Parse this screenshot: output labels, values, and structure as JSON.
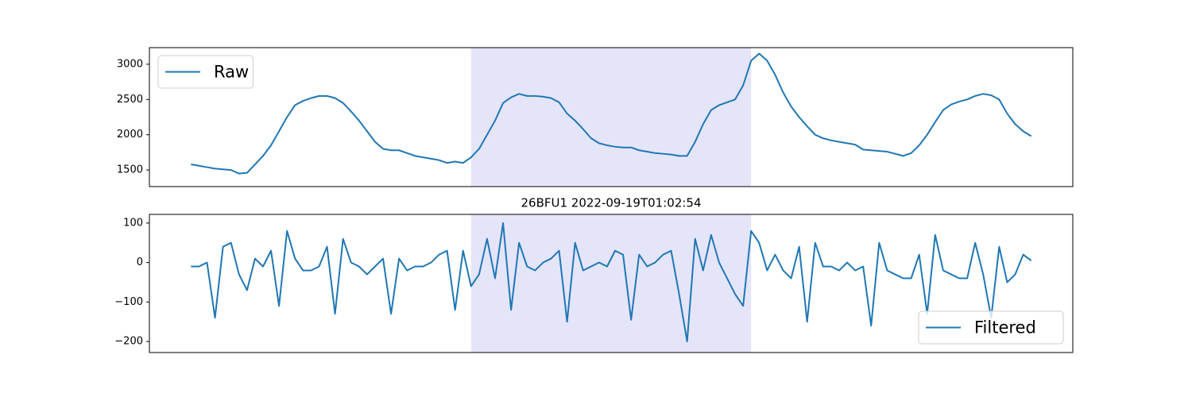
{
  "chart_data": [
    {
      "type": "line",
      "series": [
        {
          "name": "Raw",
          "color": "#1f77b4",
          "values": [
            1580,
            1560,
            1540,
            1520,
            1510,
            1500,
            1450,
            1460,
            1580,
            1700,
            1850,
            2050,
            2250,
            2420,
            2480,
            2520,
            2550,
            2550,
            2520,
            2450,
            2330,
            2200,
            2050,
            1900,
            1800,
            1780,
            1780,
            1740,
            1700,
            1680,
            1660,
            1640,
            1600,
            1620,
            1600,
            1680,
            1800,
            2000,
            2200,
            2450,
            2530,
            2580,
            2550,
            2550,
            2540,
            2520,
            2460,
            2300,
            2200,
            2080,
            1950,
            1880,
            1850,
            1830,
            1820,
            1820,
            1780,
            1760,
            1740,
            1730,
            1720,
            1700,
            1700,
            1900,
            2150,
            2350,
            2420,
            2460,
            2500,
            2700,
            3050,
            3150,
            3050,
            2850,
            2600,
            2400,
            2250,
            2120,
            2000,
            1950,
            1920,
            1900,
            1880,
            1860,
            1790,
            1780,
            1770,
            1760,
            1730,
            1700,
            1740,
            1850,
            2000,
            2180,
            2350,
            2430,
            2470,
            2500,
            2550,
            2580,
            2560,
            2500,
            2300,
            2150,
            2050,
            1980
          ]
        }
      ],
      "xlim": [
        -5.2,
        110.2
      ],
      "ylim": [
        1265,
        3235
      ],
      "yticks": [
        1500,
        2000,
        2500,
        3000
      ],
      "span": {
        "start": 35,
        "end": 70,
        "color": "#e5e5fa"
      },
      "legend": "upper left"
    },
    {
      "type": "line",
      "title": "26BFU1 2022-09-19T01:02:54",
      "series": [
        {
          "name": "Filtered",
          "color": "#1f77b4",
          "values": [
            -10,
            -10,
            0,
            -140,
            40,
            50,
            -30,
            -70,
            10,
            -10,
            30,
            -110,
            80,
            10,
            -20,
            -20,
            -10,
            40,
            -130,
            60,
            0,
            -10,
            -30,
            -10,
            10,
            -130,
            10,
            -20,
            -10,
            -10,
            0,
            20,
            30,
            -120,
            30,
            -60,
            -30,
            60,
            -40,
            100,
            -120,
            50,
            -10,
            -20,
            0,
            10,
            30,
            -150,
            50,
            -20,
            -10,
            0,
            -10,
            30,
            20,
            -145,
            20,
            -10,
            0,
            20,
            30,
            -80,
            -200,
            60,
            -20,
            70,
            0,
            -40,
            -80,
            -110,
            80,
            50,
            -20,
            20,
            -20,
            -40,
            40,
            -150,
            50,
            -10,
            -10,
            -20,
            0,
            -20,
            -10,
            -160,
            50,
            -20,
            -30,
            -40,
            -40,
            20,
            -130,
            70,
            -20,
            -30,
            -40,
            -40,
            50,
            -30,
            -140,
            40,
            -50,
            -30,
            20,
            5
          ]
        }
      ],
      "xlim": [
        -5.2,
        110.2
      ],
      "ylim": [
        -228,
        122
      ],
      "yticks": [
        {
          "value": -200,
          "label": "−200"
        },
        {
          "value": -100,
          "label": "−100"
        },
        0,
        100
      ],
      "span": {
        "start": 35,
        "end": 70,
        "color": "#e5e5fa"
      },
      "legend": "lower right"
    }
  ]
}
